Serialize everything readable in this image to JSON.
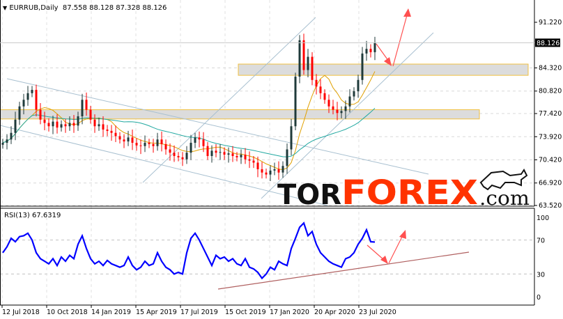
{
  "header": {
    "symbol_timeframe": "EURRUB,Daily",
    "ohlc": "87.558 88.128 87.328 88.126",
    "menu_icon": "triangle-down-icon"
  },
  "rsi_header": "RSI(13) 67.6319",
  "logo": {
    "part1": "TOR",
    "part2": "FOREX",
    "part3": ".com",
    "colors": {
      "tor": "#111111",
      "forex": "#ff3300"
    }
  },
  "colors": {
    "bull": "#1f3a3a",
    "bear": "#ff0000",
    "ma_fast": "#e0a000",
    "ma_slow": "#20a8a0",
    "rsi": "#0000ff",
    "zone_border": "#f0c040",
    "arrow": "#ff5050",
    "trendline": "#a8c0d0",
    "rsi_trend": "#b06060",
    "price_tag_bg": "#000000"
  },
  "chart_data": [
    {
      "type": "candlestick",
      "symbol": "EURRUB",
      "timeframe": "Daily",
      "ylim": [
        63.52,
        91.22
      ],
      "y_ticks": [
        "91.220",
        "84.320",
        "80.820",
        "77.420",
        "73.920",
        "70.420",
        "66.920",
        "63.520"
      ],
      "last_price": "88.126",
      "x_ticks": [
        "12 Jul 2018",
        "10 Oct 2018",
        "14 Jan 2019",
        "15 Apr 2019",
        "17 Jul 2019",
        "15 Oct 2019",
        "17 Jan 2020",
        "20 Apr 2020",
        "23 Jul 2020"
      ],
      "grid": true,
      "closes": [
        73.0,
        73.5,
        74.5,
        76.5,
        78.5,
        79.5,
        80.5,
        81.0,
        78.0,
        76.5,
        76.0,
        75.5,
        76.2,
        75.3,
        75.8,
        75.5,
        76.0,
        75.6,
        77.0,
        79.5,
        78.0,
        76.5,
        75.5,
        75.8,
        75.0,
        74.8,
        74.5,
        74.0,
        73.5,
        73.2,
        73.8,
        73.0,
        72.6,
        72.5,
        73.0,
        72.8,
        72.5,
        73.5,
        72.8,
        72.0,
        71.5,
        71.0,
        70.8,
        70.5,
        71.5,
        73.0,
        73.8,
        73.5,
        72.5,
        71.0,
        71.8,
        71.5,
        71.6,
        71.2,
        71.4,
        71.0,
        70.8,
        71.2,
        70.5,
        70.3,
        70.0,
        69.0,
        68.5,
        68.2,
        68.8,
        69.0,
        68.5,
        69.5,
        72.0,
        75.5,
        83.0,
        88.5,
        84.0,
        86.0,
        82.5,
        81.5,
        80.5,
        79.5,
        78.5,
        78.0,
        77.5,
        77.8,
        78.5,
        80.0,
        80.8,
        82.5,
        86.5,
        87.2,
        86.7,
        88.126
      ],
      "zones": [
        [
          83.2,
          84.9
        ],
        [
          76.6,
          78.0
        ]
      ]
    },
    {
      "type": "line",
      "name": "RSI(13)",
      "ylim": [
        0,
        100
      ],
      "y_ticks": [
        "100",
        "70",
        "30",
        "0"
      ],
      "values": [
        55,
        62,
        72,
        68,
        74,
        75,
        78,
        70,
        55,
        48,
        45,
        42,
        48,
        40,
        50,
        45,
        52,
        48,
        65,
        75,
        60,
        48,
        42,
        45,
        40,
        46,
        42,
        40,
        38,
        40,
        50,
        40,
        35,
        38,
        45,
        40,
        42,
        55,
        45,
        38,
        35,
        30,
        32,
        30,
        55,
        72,
        78,
        70,
        60,
        50,
        40,
        52,
        48,
        50,
        45,
        48,
        42,
        40,
        48,
        38,
        36,
        32,
        25,
        30,
        38,
        35,
        45,
        42,
        40,
        60,
        72,
        85,
        90,
        75,
        80,
        65,
        55,
        50,
        45,
        42,
        40,
        38,
        48,
        50,
        55,
        65,
        72,
        82,
        68,
        67.6319
      ]
    }
  ]
}
